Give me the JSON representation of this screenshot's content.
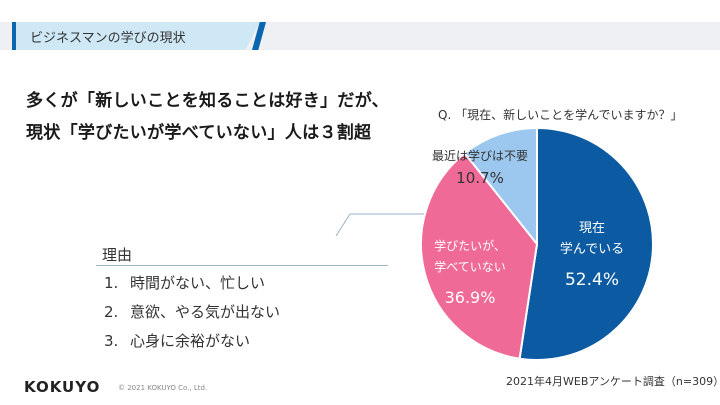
{
  "header": {
    "title": "ビジネスマンの学びの現状"
  },
  "headline": {
    "line1": "多くが「新しいことを知ることは好き」だが、",
    "line2": "現状「学びたいが学べていない」人は３割超"
  },
  "reasons": {
    "title": "理由",
    "items": [
      {
        "num": "1.",
        "text": "時間がない、忙しい"
      },
      {
        "num": "2.",
        "text": "意欲、やる気が出ない"
      },
      {
        "num": "3.",
        "text": "心身に余裕がない"
      }
    ]
  },
  "footer": {
    "logo": "KOKUYO",
    "copyright": "© 2021 KOKUYO Co., Ltd.",
    "source": "2021年4月WEBアンケート調査（n=309）"
  },
  "chart_data": {
    "type": "pie",
    "title": "Q. 「現在、新しいことを学んでいますか？」",
    "slices": [
      {
        "label_lines": [
          "現在",
          "学んでいる"
        ],
        "value": 52.4,
        "value_label": "52.4%",
        "color": "#0b5aa2",
        "text_color": "#ffffff"
      },
      {
        "label_lines": [
          "学びたいが、",
          "学べていない"
        ],
        "value": 36.9,
        "value_label": "36.9%",
        "color": "#f06a98",
        "text_color": "#ffffff"
      },
      {
        "label_lines": [
          "最近は学びは不要"
        ],
        "value": 10.7,
        "value_label": "10.7%",
        "color": "#9cc8ef",
        "text_color": "#333333"
      }
    ]
  },
  "colors": {
    "accent": "#0b66b0",
    "header_tab": "#cfe8f6"
  }
}
